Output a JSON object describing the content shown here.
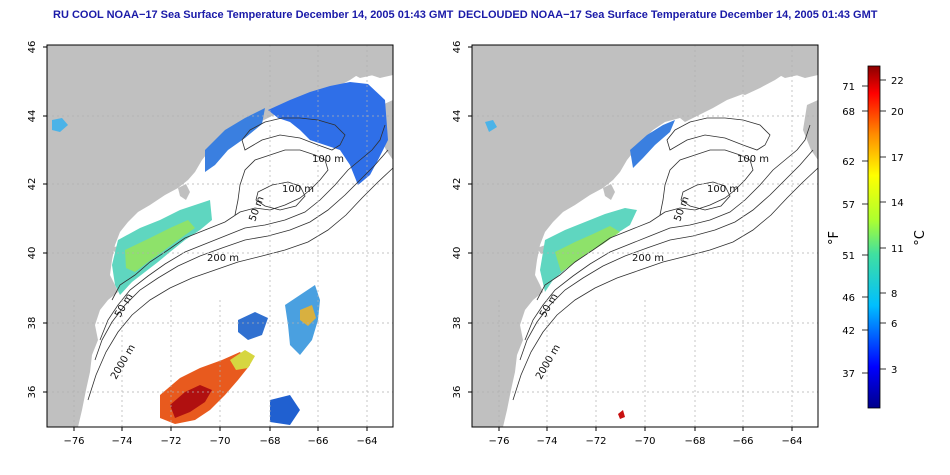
{
  "left_panel": {
    "title": "RU COOL NOAA−17 Sea Surface Temperature December 14, 2005 01:43 GMT",
    "contour_labels": [
      "100 m",
      "100 m",
      "50 m",
      "200 m",
      "50 m",
      "2000 m"
    ]
  },
  "right_panel": {
    "title": "DECLOUDED NOAA−17 Sea Surface Temperature December 14, 2005 01:43 GMT",
    "contour_labels": [
      "100 m",
      "100 m",
      "50 m",
      "200 m",
      "50 m",
      "2000 m"
    ]
  },
  "axes": {
    "x_ticks": [
      "−76",
      "−74",
      "−72",
      "−70",
      "−68",
      "−66",
      "−64"
    ],
    "y_ticks": [
      "36",
      "38",
      "40",
      "42",
      "44",
      "46"
    ],
    "x_range": [
      -77,
      -63
    ],
    "y_range": [
      35,
      46
    ]
  },
  "colorbar": {
    "fahrenheit_label": "°F",
    "celsius_label": "°C",
    "fahrenheit_ticks": [
      "71",
      "68",
      "62",
      "57",
      "51",
      "46",
      "42",
      "37"
    ],
    "celsius_ticks": [
      "22",
      "20",
      "17",
      "14",
      "11",
      "8",
      "6",
      "3"
    ]
  },
  "colors": {
    "land": "#c0c0c0",
    "ocean": "#ffffff",
    "contour": "#303030",
    "title": "#1a1aa8"
  }
}
